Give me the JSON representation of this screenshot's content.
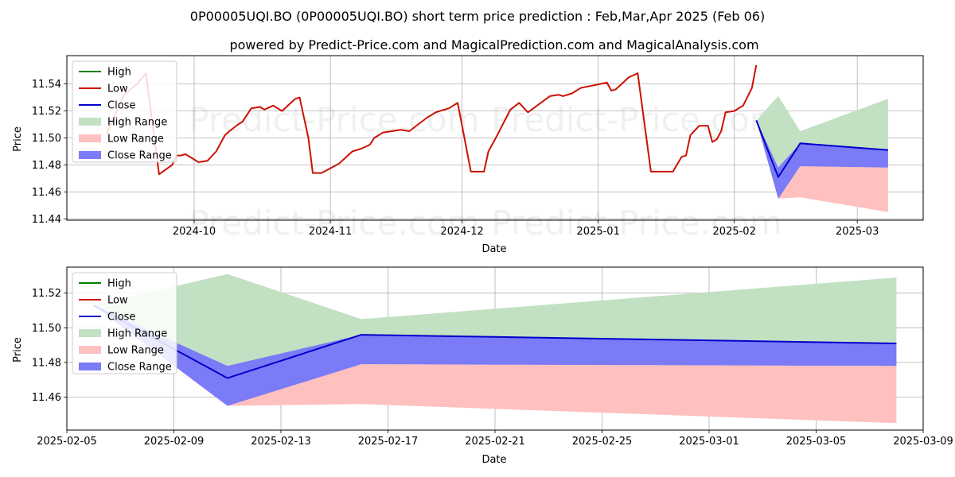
{
  "header": {
    "title": "0P00005UQI.BO (0P00005UQI.BO) short term price prediction : Feb,Mar,Apr 2025 (Feb 06)",
    "subtitle": "powered by Predict-Price.com and MagicalPrediction.com and MagicalAnalysis.com",
    "watermark": "Predict-Price.com"
  },
  "colors": {
    "high": "#008000",
    "low": "#cc1100",
    "close": "#0000cc",
    "high_range": "#c2e0c2",
    "low_range": "#ffc0c0",
    "close_range": "#7b7bf7"
  },
  "chart_data": [
    {
      "type": "line",
      "xlabel": "Date",
      "ylabel": "Price",
      "xlim": [
        "2024-09-02",
        "2025-03-16"
      ],
      "ylim": [
        11.439,
        11.561
      ],
      "xticks": [
        "2024-10-01",
        "2024-11-01",
        "2024-12-01",
        "2025-01-01",
        "2025-02-01",
        "2025-03-01"
      ],
      "xtick_labels": [
        "2024-10",
        "2024-11",
        "2024-12",
        "2025-01",
        "2025-02",
        "2025-03"
      ],
      "yticks": [
        11.44,
        11.46,
        11.48,
        11.5,
        11.52,
        11.54
      ],
      "ytick_labels": [
        "11.44",
        "11.46",
        "11.48",
        "11.50",
        "11.52",
        "11.54"
      ],
      "grid": true,
      "legend_position": "top-left",
      "legend": [
        "High",
        "Low",
        "Close",
        "High Range",
        "Low Range",
        "Close Range"
      ],
      "series": [
        {
          "name": "Low",
          "x": [
            "2024-09-11",
            "2024-09-13",
            "2024-09-15",
            "2024-09-18",
            "2024-09-20",
            "2024-09-23",
            "2024-09-26",
            "2024-09-27",
            "2024-09-28",
            "2024-09-29",
            "2024-10-02",
            "2024-10-04",
            "2024-10-06",
            "2024-10-08",
            "2024-10-09",
            "2024-10-11",
            "2024-10-12",
            "2024-10-14",
            "2024-10-16",
            "2024-10-17",
            "2024-10-19",
            "2024-10-21",
            "2024-10-24",
            "2024-10-25",
            "2024-10-27",
            "2024-10-28",
            "2024-10-29",
            "2024-10-30",
            "2024-11-03",
            "2024-11-05",
            "2024-11-06",
            "2024-11-08",
            "2024-11-10",
            "2024-11-11",
            "2024-11-13",
            "2024-11-17",
            "2024-11-19",
            "2024-11-21",
            "2024-11-23",
            "2024-11-25",
            "2024-11-26",
            "2024-11-28",
            "2024-11-30",
            "2024-12-03",
            "2024-12-06",
            "2024-12-07",
            "2024-12-09",
            "2024-12-12",
            "2024-12-14",
            "2024-12-16",
            "2024-12-21",
            "2024-12-23",
            "2024-12-24",
            "2024-12-26",
            "2024-12-28",
            "2025-01-03",
            "2025-01-04",
            "2025-01-05",
            "2025-01-08",
            "2025-01-10",
            "2025-01-13",
            "2025-01-15",
            "2025-01-18",
            "2025-01-20",
            "2025-01-21",
            "2025-01-22",
            "2025-01-24",
            "2025-01-26",
            "2025-01-27",
            "2025-01-28",
            "2025-01-29",
            "2025-01-30",
            "2025-02-01",
            "2025-02-03",
            "2025-02-05",
            "2025-02-06"
          ],
          "values": [
            11.503,
            11.517,
            11.532,
            11.54,
            11.548,
            11.473,
            11.48,
            11.487,
            11.487,
            11.488,
            11.482,
            11.483,
            11.49,
            11.502,
            11.505,
            11.51,
            11.512,
            11.522,
            11.523,
            11.521,
            11.524,
            11.52,
            11.529,
            11.53,
            11.5,
            11.474,
            11.474,
            11.474,
            11.481,
            11.487,
            11.49,
            11.492,
            11.495,
            11.5,
            11.504,
            11.506,
            11.505,
            11.51,
            11.515,
            11.519,
            11.52,
            11.522,
            11.526,
            11.475,
            11.475,
            11.49,
            11.502,
            11.521,
            11.526,
            11.519,
            11.531,
            11.532,
            11.531,
            11.533,
            11.537,
            11.541,
            11.535,
            11.536,
            11.545,
            11.548,
            11.475,
            11.475,
            11.475,
            11.486,
            11.487,
            11.502,
            11.509,
            11.509,
            11.497,
            11.499,
            11.505,
            11.519,
            11.52,
            11.524,
            11.537,
            11.554
          ]
        }
      ]
    },
    {
      "type": "area",
      "xlabel": "Date",
      "ylabel": "Price",
      "xlim": [
        "2025-02-05",
        "2025-03-09"
      ],
      "ylim": [
        11.441,
        11.535
      ],
      "xticks": [
        "2025-02-05",
        "2025-02-09",
        "2025-02-13",
        "2025-02-17",
        "2025-02-21",
        "2025-02-25",
        "2025-03-01",
        "2025-03-05",
        "2025-03-09"
      ],
      "xtick_labels": [
        "2025-02-05",
        "2025-02-09",
        "2025-02-13",
        "2025-02-17",
        "2025-02-21",
        "2025-02-25",
        "2025-03-01",
        "2025-03-05",
        "2025-03-09"
      ],
      "yticks": [
        11.46,
        11.48,
        11.5,
        11.52
      ],
      "ytick_labels": [
        "11.46",
        "11.48",
        "11.50",
        "11.52"
      ],
      "grid": true,
      "legend_position": "top-left",
      "legend": [
        "High",
        "Low",
        "Close",
        "High Range",
        "Low Range",
        "Close Range"
      ],
      "x": [
        "2025-02-06",
        "2025-02-11",
        "2025-02-16",
        "2025-03-08"
      ],
      "series": [
        {
          "name": "High Range",
          "upper": [
            11.513,
            11.531,
            11.505,
            11.529
          ],
          "lower": [
            11.513,
            11.477,
            11.496,
            11.491
          ]
        },
        {
          "name": "Low Range",
          "upper": [
            11.513,
            11.478,
            11.479,
            11.478
          ],
          "lower": [
            11.513,
            11.455,
            11.456,
            11.445
          ]
        },
        {
          "name": "Close Range",
          "upper": [
            11.513,
            11.478,
            11.496,
            11.491
          ],
          "lower": [
            11.513,
            11.455,
            11.479,
            11.478
          ]
        },
        {
          "name": "Close",
          "values": [
            11.513,
            11.471,
            11.496,
            11.491
          ]
        }
      ]
    }
  ]
}
